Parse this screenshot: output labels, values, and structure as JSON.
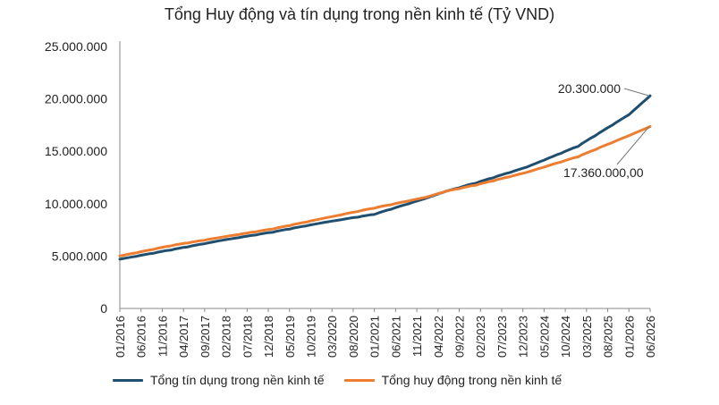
{
  "chart_data": {
    "type": "line",
    "title": "Tổng Huy động và tín dụng trong nền kinh tế (Tỷ VND)",
    "ylim": [
      0,
      25000000
    ],
    "yticks": [
      "0",
      "5.000.000",
      "10.000.000",
      "15.000.000",
      "20.000.000",
      "25.000.000"
    ],
    "ytick_values": [
      0,
      5000000,
      10000000,
      15000000,
      20000000,
      25000000
    ],
    "x_ticks": [
      "01/2016",
      "06/2016",
      "11/2016",
      "04/2017",
      "09/2017",
      "02/2018",
      "07/2018",
      "12/2018",
      "05/2019",
      "10/2019",
      "03/2020",
      "08/2020",
      "01/2021",
      "06/2021",
      "11/2021",
      "04/2022",
      "09/2022",
      "02/2023",
      "07/2023",
      "12/2023",
      "05/2024",
      "10/2024",
      "03/2025",
      "08/2025",
      "01/2026",
      "06/2026"
    ],
    "x_range": [
      "01/2016",
      "06/2026"
    ],
    "grid": false,
    "legend_position": "bottom",
    "series": [
      {
        "name": "Tổng tín dụng trong nền kinh tế",
        "color": "#1f4e6e",
        "points": [
          [
            "01/2016",
            4700000
          ],
          [
            "01/2017",
            5600000
          ],
          [
            "01/2018",
            6500000
          ],
          [
            "01/2019",
            7300000
          ],
          [
            "01/2020",
            8200000
          ],
          [
            "01/2021",
            9000000
          ],
          [
            "01/2022",
            10500000
          ],
          [
            "06/2022",
            11200000
          ],
          [
            "01/2023",
            12000000
          ],
          [
            "01/2024",
            13500000
          ],
          [
            "01/2025",
            15500000
          ],
          [
            "01/2026",
            18500000
          ],
          [
            "06/2026",
            20300000
          ]
        ]
      },
      {
        "name": "Tổng huy động trong nền kinh tế",
        "color": "#ed7d31",
        "points": [
          [
            "01/2016",
            5000000
          ],
          [
            "01/2017",
            6000000
          ],
          [
            "01/2018",
            6800000
          ],
          [
            "01/2019",
            7600000
          ],
          [
            "01/2020",
            8600000
          ],
          [
            "01/2021",
            9600000
          ],
          [
            "01/2022",
            10600000
          ],
          [
            "06/2022",
            11200000
          ],
          [
            "01/2023",
            11800000
          ],
          [
            "01/2024",
            13000000
          ],
          [
            "01/2025",
            14500000
          ],
          [
            "01/2026",
            16500000
          ],
          [
            "06/2026",
            17360000
          ]
        ]
      }
    ],
    "annotations": [
      {
        "label": "20.300.000",
        "series": 0,
        "x": "06/2026",
        "y": 20300000
      },
      {
        "label": "17.360.000,00",
        "series": 1,
        "x": "06/2026",
        "y": 17360000
      }
    ]
  }
}
